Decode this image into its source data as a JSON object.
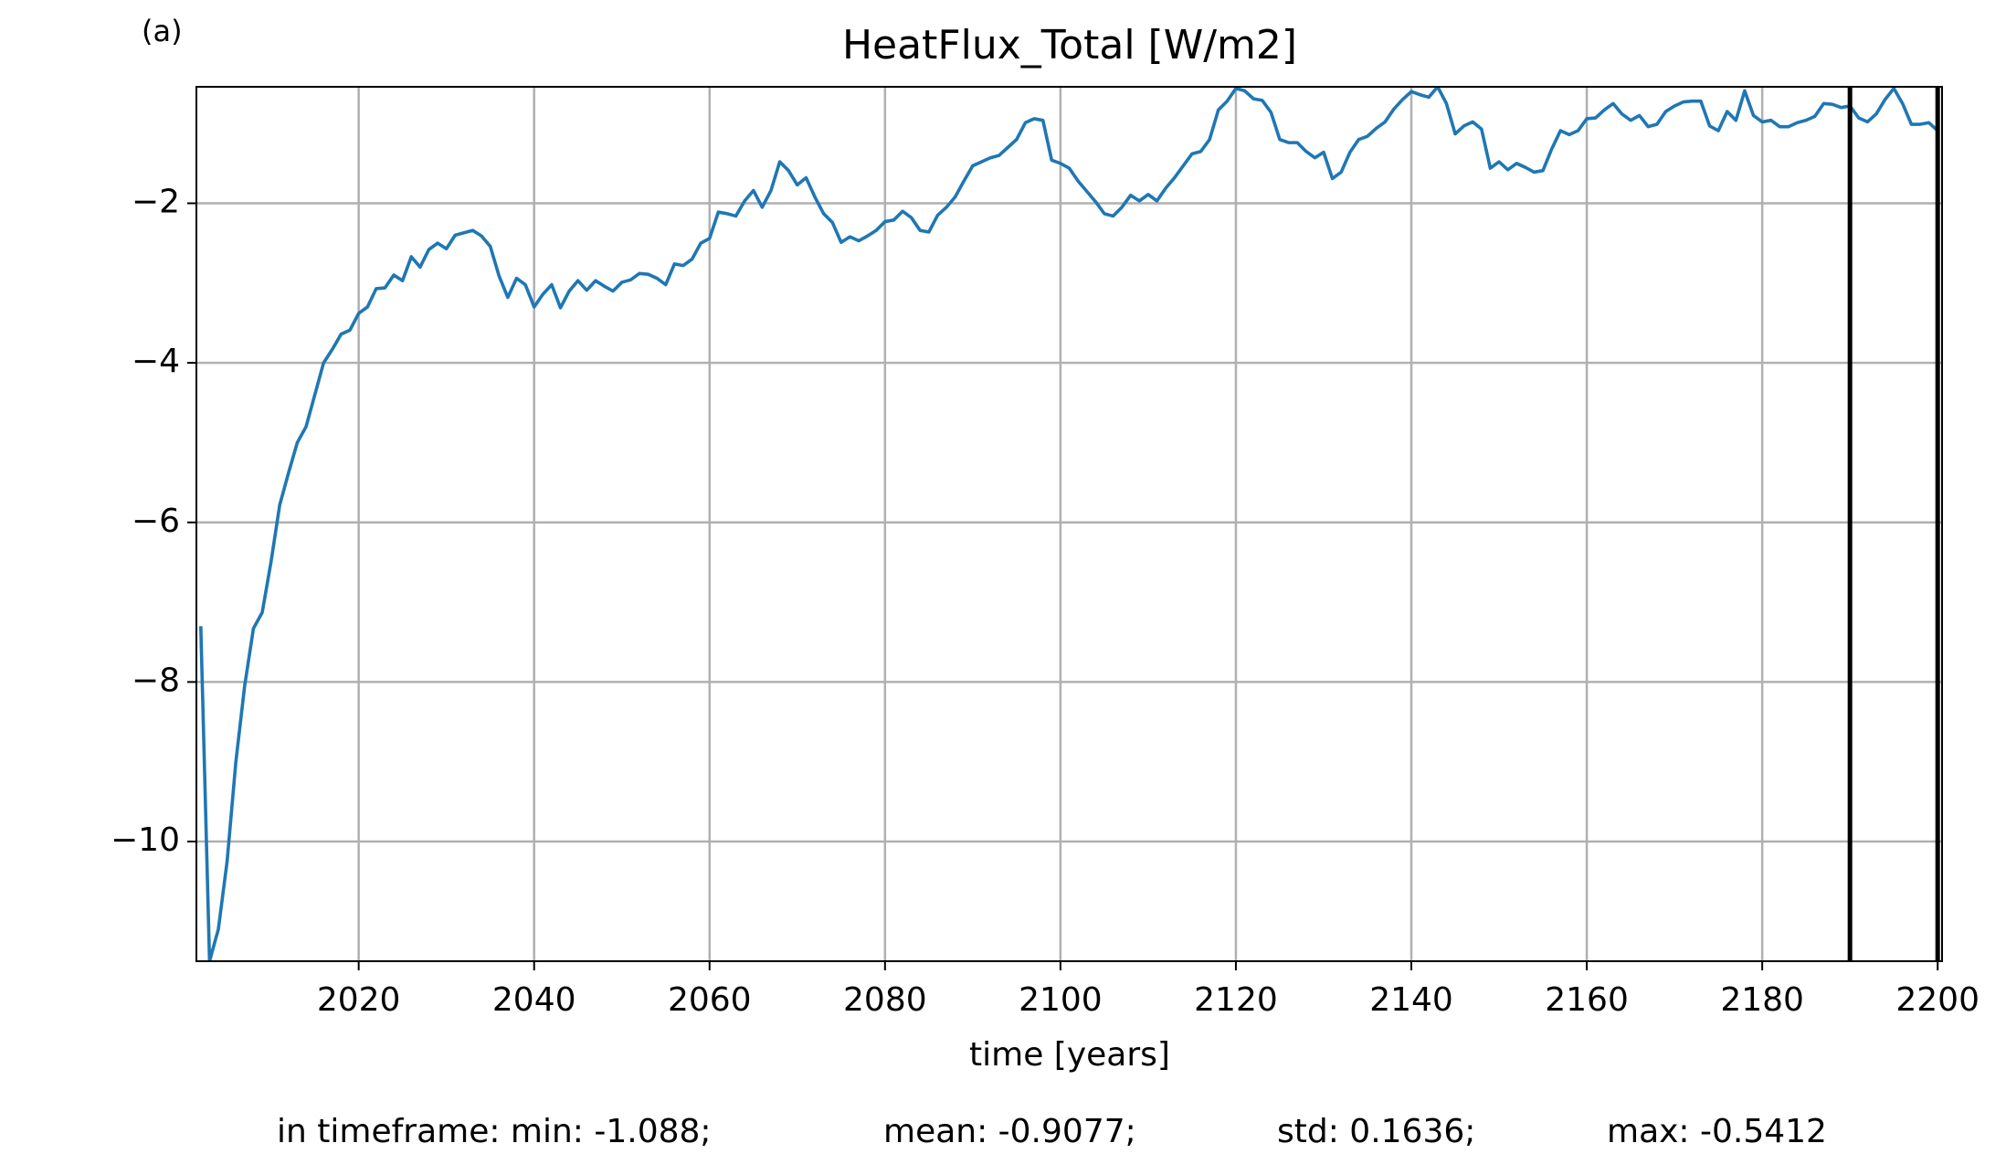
{
  "chart_data": {
    "type": "line",
    "title": "HeatFlux_Total [W/m2]",
    "xlabel": "time [years]",
    "annotations": [
      "(a)",
      "in timeframe: min: -1.088;",
      "mean: -0.9077;",
      "std: 0.1636;",
      "max: -0.5412"
    ],
    "x": [
      2002,
      2003,
      2004,
      2005,
      2006,
      2007,
      2008,
      2009,
      2010,
      2011,
      2012,
      2013,
      2014,
      2015,
      2016,
      2017,
      2018,
      2019,
      2020,
      2021,
      2022,
      2023,
      2024,
      2025,
      2026,
      2027,
      2028,
      2029,
      2030,
      2031,
      2032,
      2033,
      2034,
      2035,
      2036,
      2037,
      2038,
      2039,
      2040,
      2041,
      2042,
      2043,
      2044,
      2045,
      2046,
      2047,
      2048,
      2049,
      2050,
      2051,
      2052,
      2053,
      2054,
      2055,
      2056,
      2057,
      2058,
      2059,
      2060,
      2061,
      2062,
      2063,
      2064,
      2065,
      2066,
      2067,
      2068,
      2069,
      2070,
      2071,
      2072,
      2073,
      2074,
      2075,
      2076,
      2077,
      2078,
      2079,
      2080,
      2081,
      2082,
      2083,
      2084,
      2085,
      2086,
      2087,
      2088,
      2089,
      2090,
      2091,
      2092,
      2093,
      2094,
      2095,
      2096,
      2097,
      2098,
      2099,
      2100,
      2101,
      2102,
      2103,
      2104,
      2105,
      2106,
      2107,
      2108,
      2109,
      2110,
      2111,
      2112,
      2113,
      2114,
      2115,
      2116,
      2117,
      2118,
      2119,
      2120,
      2121,
      2122,
      2123,
      2124,
      2125,
      2126,
      2127,
      2128,
      2129,
      2130,
      2131,
      2132,
      2133,
      2134,
      2135,
      2136,
      2137,
      2138,
      2139,
      2140,
      2141,
      2142,
      2143,
      2144,
      2145,
      2146,
      2147,
      2148,
      2149,
      2150,
      2151,
      2152,
      2153,
      2154,
      2155,
      2156,
      2157,
      2158,
      2159,
      2160,
      2161,
      2162,
      2163,
      2164,
      2165,
      2166,
      2167,
      2168,
      2169,
      2170,
      2171,
      2172,
      2173,
      2174,
      2175,
      2176,
      2177,
      2178,
      2179,
      2180,
      2181,
      2182,
      2183,
      2184,
      2185,
      2186,
      2187,
      2188,
      2189,
      2190,
      2191,
      2192,
      2193,
      2194,
      2195,
      2196,
      2197,
      2198,
      2199,
      2200
    ],
    "series": [
      {
        "color": "#1f77b4",
        "values": [
          -7.3,
          -11.5,
          -11.1,
          -10.25,
          -9.0,
          -8.05,
          -7.33,
          -7.13,
          -6.5,
          -5.78,
          -5.38,
          -5.0,
          -4.8,
          -4.4,
          -4.0,
          -3.83,
          -3.64,
          -3.59,
          -3.38,
          -3.3,
          -3.07,
          -3.06,
          -2.9,
          -2.97,
          -2.67,
          -2.8,
          -2.58,
          -2.5,
          -2.57,
          -2.4,
          -2.37,
          -2.34,
          -2.41,
          -2.54,
          -2.91,
          -3.18,
          -2.94,
          -3.02,
          -3.3,
          -3.14,
          -3.02,
          -3.31,
          -3.1,
          -2.97,
          -3.09,
          -2.97,
          -3.04,
          -3.1,
          -2.99,
          -2.96,
          -2.88,
          -2.89,
          -2.94,
          -3.02,
          -2.76,
          -2.78,
          -2.7,
          -2.5,
          -2.44,
          -2.11,
          -2.13,
          -2.16,
          -1.97,
          -1.84,
          -2.05,
          -1.84,
          -1.48,
          -1.59,
          -1.77,
          -1.68,
          -1.92,
          -2.13,
          -2.24,
          -2.49,
          -2.42,
          -2.47,
          -2.41,
          -2.34,
          -2.23,
          -2.21,
          -2.1,
          -2.18,
          -2.34,
          -2.36,
          -2.15,
          -2.05,
          -1.92,
          -1.72,
          -1.53,
          -1.48,
          -1.43,
          -1.4,
          -1.3,
          -1.2,
          -0.99,
          -0.94,
          -0.96,
          -1.46,
          -1.5,
          -1.56,
          -1.72,
          -1.85,
          -1.98,
          -2.13,
          -2.16,
          -2.05,
          -1.9,
          -1.97,
          -1.89,
          -1.97,
          -1.81,
          -1.68,
          -1.53,
          -1.38,
          -1.35,
          -1.2,
          -0.83,
          -0.72,
          -0.56,
          -0.59,
          -0.69,
          -0.71,
          -0.86,
          -1.2,
          -1.24,
          -1.24,
          -1.35,
          -1.43,
          -1.36,
          -1.69,
          -1.61,
          -1.36,
          -1.2,
          -1.16,
          -1.06,
          -0.98,
          -0.82,
          -0.7,
          -0.6,
          -0.64,
          -0.67,
          -0.54,
          -0.75,
          -1.13,
          -1.03,
          -0.98,
          -1.07,
          -1.56,
          -1.48,
          -1.58,
          -1.5,
          -1.55,
          -1.61,
          -1.59,
          -1.32,
          -1.09,
          -1.14,
          -1.09,
          -0.94,
          -0.93,
          -0.83,
          -0.75,
          -0.88,
          -0.96,
          -0.9,
          -1.04,
          -1.01,
          -0.85,
          -0.78,
          -0.73,
          -0.72,
          -0.72,
          -1.03,
          -1.09,
          -0.85,
          -0.96,
          -0.59,
          -0.9,
          -0.98,
          -0.96,
          -1.04,
          -1.04,
          -0.99,
          -0.96,
          -0.91,
          -0.75,
          -0.76,
          -0.8,
          -0.78,
          -0.93,
          -0.98,
          -0.88,
          -0.7,
          -0.56,
          -0.75,
          -1.01,
          -1.01,
          -0.99,
          -1.09
        ]
      }
    ],
    "vlines": [
      2190,
      2200
    ],
    "vline_color": "#000000",
    "xlim": [
      2001.5,
      2200.5
    ],
    "ylim": [
      -11.5,
      -0.54
    ],
    "xticks": [
      2020,
      2040,
      2060,
      2080,
      2100,
      2120,
      2140,
      2160,
      2180,
      2200
    ],
    "yticks": [
      {
        "value": -10,
        "label": "−10"
      },
      {
        "value": -8,
        "label": "−8"
      },
      {
        "value": -6,
        "label": "−6"
      },
      {
        "value": -4,
        "label": "−4"
      },
      {
        "value": -2,
        "label": "−2"
      }
    ],
    "grid": true
  }
}
